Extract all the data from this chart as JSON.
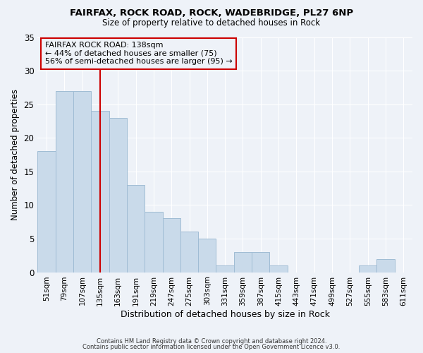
{
  "title1": "FAIRFAX, ROCK ROAD, ROCK, WADEBRIDGE, PL27 6NP",
  "title2": "Size of property relative to detached houses in Rock",
  "xlabel": "Distribution of detached houses by size in Rock",
  "ylabel": "Number of detached properties",
  "categories": [
    "51sqm",
    "79sqm",
    "107sqm",
    "135sqm",
    "163sqm",
    "191sqm",
    "219sqm",
    "247sqm",
    "275sqm",
    "303sqm",
    "331sqm",
    "359sqm",
    "387sqm",
    "415sqm",
    "443sqm",
    "471sqm",
    "499sqm",
    "527sqm",
    "555sqm",
    "583sqm",
    "611sqm"
  ],
  "values": [
    18,
    27,
    27,
    24,
    23,
    13,
    9,
    8,
    6,
    5,
    1,
    3,
    3,
    1,
    0,
    0,
    0,
    0,
    1,
    2,
    0
  ],
  "bar_color": "#c9daea",
  "bar_edge_color": "#a0bcd4",
  "vline_color": "#cc0000",
  "annotation_title": "FAIRFAX ROCK ROAD: 138sqm",
  "annotation_line1": "← 44% of detached houses are smaller (75)",
  "annotation_line2": "56% of semi-detached houses are larger (95) →",
  "annotation_box_color": "#cc0000",
  "ylim": [
    0,
    35
  ],
  "yticks": [
    0,
    5,
    10,
    15,
    20,
    25,
    30,
    35
  ],
  "footer1": "Contains HM Land Registry data © Crown copyright and database right 2024.",
  "footer2": "Contains public sector information licensed under the Open Government Licence v3.0.",
  "bg_color": "#eef2f8"
}
